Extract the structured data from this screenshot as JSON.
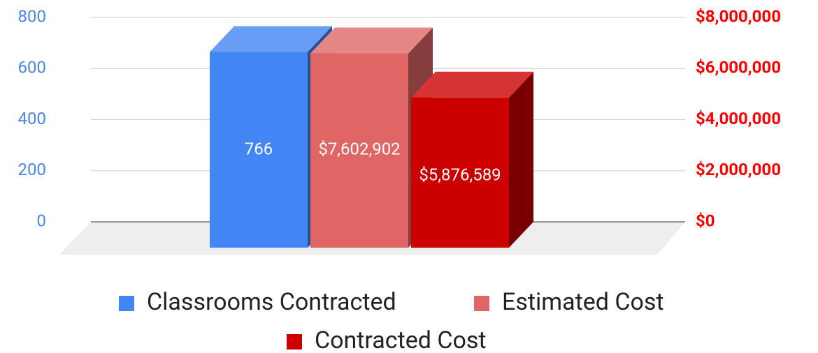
{
  "chart_data": {
    "type": "bar3d",
    "categories": [
      null
    ],
    "series": [
      {
        "name": "Classrooms Contracted",
        "color": "#4285f4",
        "values": [
          766
        ],
        "value_labels": [
          "766"
        ],
        "axis": "y"
      },
      {
        "name": "Estimated Cost",
        "color": "#e06666",
        "values": [
          7602902
        ],
        "value_labels": [
          "$7,602,902"
        ],
        "axis": "y2"
      },
      {
        "name": "Contracted Cost",
        "color": "#cc0000",
        "values": [
          5876589
        ],
        "value_labels": [
          "$5,876,589"
        ],
        "axis": "y2"
      }
    ],
    "ylim": [
      0,
      800
    ],
    "yticks": [
      0,
      200,
      400,
      600,
      800
    ],
    "y_color": "#4a86e8",
    "y2lim": [
      0,
      8000000
    ],
    "y2ticks": [
      {
        "value": 0,
        "label": "$0"
      },
      {
        "value": 2000000,
        "label": "$2,000,000"
      },
      {
        "value": 4000000,
        "label": "$4,000,000"
      },
      {
        "value": 6000000,
        "label": "$6,000,000"
      },
      {
        "value": 8000000,
        "label": "$8,000,000"
      }
    ],
    "y2_color": "#ff0000",
    "grid": true,
    "legend": "bottom"
  }
}
